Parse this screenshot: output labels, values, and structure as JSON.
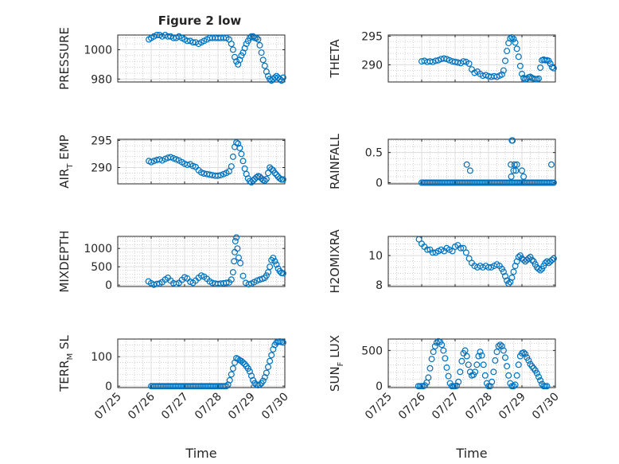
{
  "figure": {
    "title": "Figure 2 low"
  },
  "colors": {
    "marker": "#0072BD",
    "grid": "#b3b3b3",
    "axis": "#262626"
  },
  "chart_data": [
    {
      "type": "scatter",
      "title": "Figure 2 low",
      "xlabel": "",
      "ylabel": "PRESSURE",
      "xlim": [
        25.0,
        30.0
      ],
      "ylim": [
        978,
        1010
      ],
      "yticks": [
        980,
        1000
      ],
      "ytick_labels": [
        "980",
        "1000"
      ],
      "xticks": [
        25,
        26,
        27,
        28,
        29,
        30
      ],
      "xtick_labels": [],
      "grid": true,
      "x": [
        25.93,
        26.0,
        26.08,
        26.17,
        26.25,
        26.33,
        26.42,
        26.5,
        26.58,
        26.67,
        26.75,
        26.83,
        26.92,
        27.0,
        27.08,
        27.17,
        27.25,
        27.33,
        27.42,
        27.5,
        27.58,
        27.67,
        27.75,
        27.83,
        27.92,
        28.0,
        28.08,
        28.17,
        28.25,
        28.33,
        28.4,
        28.45,
        28.5,
        28.55,
        28.6,
        28.65,
        28.7,
        28.75,
        28.8,
        28.85,
        28.9,
        28.95,
        29.0,
        29.05,
        29.1,
        29.15,
        29.2,
        29.25,
        29.3,
        29.35,
        29.4,
        29.45,
        29.5,
        29.55,
        29.6,
        29.65,
        29.7,
        29.75,
        29.8,
        29.85,
        29.9,
        29.95
      ],
      "y": [
        1007,
        1008,
        1009,
        1010,
        1010,
        1009,
        1010,
        1009,
        1009,
        1008,
        1008,
        1009,
        1008,
        1007,
        1006,
        1006,
        1005,
        1005,
        1004,
        1005,
        1006,
        1007,
        1008,
        1008,
        1008,
        1008,
        1008,
        1008,
        1008,
        1007,
        1004,
        1000,
        995,
        992,
        990,
        993,
        996,
        998,
        1001,
        1004,
        1006,
        1008,
        1009,
        1009,
        1008,
        1008,
        1007,
        1003,
        998,
        993,
        989,
        985,
        982,
        980,
        979,
        980,
        981,
        982,
        981,
        980,
        979,
        981
      ]
    },
    {
      "type": "scatter",
      "xlabel": "",
      "ylabel": "THETA",
      "xlim": [
        25.0,
        30.0
      ],
      "ylim": [
        287,
        295.2
      ],
      "yticks": [
        290,
        295
      ],
      "ytick_labels": [
        "290",
        "295"
      ],
      "xticks": [
        25,
        26,
        27,
        28,
        29,
        30
      ],
      "xtick_labels": [],
      "grid": true,
      "x": [
        26.0,
        26.08,
        26.17,
        26.25,
        26.33,
        26.42,
        26.5,
        26.58,
        26.67,
        26.75,
        26.83,
        26.92,
        27.0,
        27.08,
        27.17,
        27.25,
        27.33,
        27.42,
        27.5,
        27.58,
        27.67,
        27.75,
        27.83,
        27.92,
        28.0,
        28.08,
        28.17,
        28.25,
        28.33,
        28.4,
        28.45,
        28.5,
        28.55,
        28.6,
        28.65,
        28.7,
        28.75,
        28.8,
        28.85,
        28.9,
        28.95,
        29.0,
        29.05,
        29.1,
        29.15,
        29.2,
        29.25,
        29.3,
        29.35,
        29.4,
        29.45,
        29.5,
        29.55,
        29.6,
        29.65,
        29.7,
        29.75,
        29.8,
        29.85,
        29.9,
        29.95
      ],
      "y": [
        290.6,
        290.7,
        290.5,
        290.6,
        290.5,
        290.7,
        290.8,
        291.0,
        291.1,
        291.0,
        290.8,
        290.6,
        290.5,
        290.4,
        290.3,
        290.6,
        290.5,
        290.2,
        289.2,
        288.6,
        288.8,
        288.4,
        288.1,
        288.2,
        288.0,
        287.9,
        288.0,
        287.9,
        288.1,
        288.3,
        289.0,
        290.7,
        292.4,
        293.8,
        294.6,
        294.8,
        294.5,
        293.9,
        292.8,
        291.4,
        289.8,
        288.4,
        287.7,
        287.5,
        287.6,
        287.8,
        287.9,
        287.7,
        287.6,
        287.5,
        287.5,
        287.6,
        289.5,
        290.8,
        290.9,
        290.8,
        290.8,
        290.7,
        290.2,
        289.6,
        289.4
      ]
    },
    {
      "type": "scatter",
      "xlabel": "",
      "ylabel": "AIR_T EMP",
      "xlim": [
        25.0,
        30.0
      ],
      "ylim": [
        287,
        295.2
      ],
      "yticks": [
        290,
        295
      ],
      "ytick_labels": [
        "290",
        "295"
      ],
      "xticks": [
        25,
        26,
        27,
        28,
        29,
        30
      ],
      "xtick_labels": [],
      "grid": true,
      "x": [
        25.93,
        26.0,
        26.08,
        26.17,
        26.25,
        26.33,
        26.42,
        26.5,
        26.58,
        26.67,
        26.75,
        26.83,
        26.92,
        27.0,
        27.08,
        27.17,
        27.25,
        27.33,
        27.42,
        27.5,
        27.58,
        27.67,
        27.75,
        27.83,
        27.92,
        28.0,
        28.08,
        28.17,
        28.25,
        28.33,
        28.4,
        28.45,
        28.5,
        28.55,
        28.6,
        28.65,
        28.7,
        28.75,
        28.8,
        28.85,
        28.9,
        28.95,
        29.0,
        29.05,
        29.1,
        29.15,
        29.2,
        29.25,
        29.3,
        29.35,
        29.4,
        29.45,
        29.5,
        29.55,
        29.6,
        29.65,
        29.7,
        29.75,
        29.8,
        29.85,
        29.9,
        29.95
      ],
      "y": [
        291.2,
        291.0,
        291.2,
        291.4,
        291.5,
        291.3,
        291.6,
        291.8,
        291.9,
        291.7,
        291.5,
        291.3,
        291.0,
        290.7,
        290.5,
        290.6,
        290.3,
        290.1,
        289.5,
        289.1,
        288.9,
        288.8,
        288.7,
        288.6,
        288.5,
        288.5,
        288.6,
        288.8,
        289.0,
        289.3,
        290.2,
        292.0,
        293.8,
        294.6,
        294.4,
        293.6,
        292.5,
        291.2,
        289.8,
        288.8,
        288.0,
        287.5,
        287.3,
        287.6,
        287.9,
        288.2,
        288.4,
        288.3,
        288.0,
        287.7,
        287.6,
        287.9,
        289.0,
        290.0,
        289.7,
        289.5,
        289.0,
        288.7,
        288.3,
        288.0,
        287.8,
        287.8
      ]
    },
    {
      "type": "scatter",
      "xlabel": "",
      "ylabel": "RAINFALL",
      "xlim": [
        25.0,
        30.0
      ],
      "ylim": [
        -0.02,
        0.72
      ],
      "yticks": [
        0,
        0.5
      ],
      "ytick_labels": [
        "0",
        "0.5"
      ],
      "xticks": [
        25,
        26,
        27,
        28,
        29,
        30
      ],
      "xtick_labels": [],
      "grid": true,
      "x": [
        26.0,
        26.05,
        26.1,
        26.15,
        26.2,
        26.25,
        26.3,
        26.35,
        26.4,
        26.45,
        26.5,
        26.55,
        26.6,
        26.65,
        26.7,
        26.75,
        26.8,
        26.85,
        26.9,
        26.95,
        27.0,
        27.05,
        27.1,
        27.15,
        27.2,
        27.25,
        27.3,
        27.35,
        27.4,
        27.45,
        27.5,
        27.55,
        27.6,
        27.65,
        27.7,
        27.75,
        27.8,
        27.85,
        27.9,
        27.95,
        28.0,
        28.05,
        28.1,
        28.15,
        28.2,
        28.25,
        28.3,
        28.35,
        28.4,
        28.45,
        28.5,
        28.55,
        28.6,
        28.65,
        28.7,
        28.75,
        28.8,
        28.85,
        28.9,
        28.95,
        29.0,
        29.05,
        29.1,
        29.15,
        29.2,
        29.25,
        29.3,
        29.35,
        29.4,
        29.45,
        29.5,
        29.55,
        29.6,
        29.65,
        29.7,
        29.75,
        29.8,
        29.85,
        29.9,
        29.95,
        27.35,
        27.45,
        28.67,
        28.7,
        28.72,
        28.75,
        28.78,
        28.82,
        28.68,
        28.85,
        29.0,
        29.05,
        29.88
      ],
      "y": [
        0,
        0,
        0,
        0,
        0,
        0,
        0,
        0,
        0,
        0,
        0,
        0,
        0,
        0,
        0,
        0,
        0,
        0,
        0,
        0,
        0,
        0,
        0,
        0,
        0,
        0,
        0,
        0,
        0,
        0,
        0,
        0,
        0,
        0,
        0,
        0,
        0,
        0,
        0,
        0,
        0,
        0,
        0,
        0,
        0,
        0,
        0,
        0,
        0,
        0,
        0,
        0,
        0,
        0,
        0,
        0,
        0,
        0,
        0,
        0,
        0,
        0,
        0,
        0,
        0,
        0,
        0,
        0,
        0,
        0,
        0,
        0,
        0,
        0,
        0,
        0,
        0,
        0,
        0,
        0,
        0.3,
        0.2,
        0.3,
        0.7,
        0.7,
        0.2,
        0.3,
        0.2,
        0.1,
        0.3,
        0.2,
        0.1,
        0.3
      ]
    },
    {
      "type": "scatter",
      "xlabel": "",
      "ylabel": "MIXDEPTH",
      "xlim": [
        25.0,
        30.0
      ],
      "ylim": [
        -40,
        1330
      ],
      "yticks": [
        0,
        500,
        1000
      ],
      "ytick_labels": [
        "0",
        "500",
        "1000"
      ],
      "xticks": [
        25,
        26,
        27,
        28,
        29,
        30
      ],
      "xtick_labels": [],
      "grid": true,
      "x": [
        25.92,
        26.0,
        26.08,
        26.17,
        26.25,
        26.33,
        26.42,
        26.5,
        26.58,
        26.67,
        26.75,
        26.83,
        26.92,
        27.0,
        27.08,
        27.17,
        27.25,
        27.33,
        27.42,
        27.5,
        27.58,
        27.67,
        27.75,
        27.83,
        27.92,
        28.0,
        28.08,
        28.17,
        28.25,
        28.33,
        28.4,
        28.45,
        28.48,
        28.5,
        28.52,
        28.55,
        28.58,
        28.62,
        28.67,
        28.75,
        28.83,
        28.92,
        29.0,
        29.08,
        29.17,
        29.25,
        29.33,
        29.4,
        29.45,
        29.5,
        29.55,
        29.6,
        29.65,
        29.7,
        29.75,
        29.8,
        29.85,
        29.9,
        29.95
      ],
      "y": [
        100,
        50,
        10,
        30,
        40,
        80,
        150,
        200,
        120,
        50,
        30,
        60,
        140,
        210,
        180,
        90,
        60,
        120,
        200,
        260,
        230,
        170,
        100,
        60,
        40,
        30,
        40,
        50,
        60,
        70,
        150,
        350,
        650,
        900,
        1200,
        1300,
        1000,
        750,
        600,
        250,
        60,
        20,
        40,
        80,
        120,
        150,
        170,
        200,
        260,
        350,
        500,
        680,
        740,
        650,
        560,
        450,
        380,
        330,
        320
      ]
    },
    {
      "type": "scatter",
      "xlabel": "",
      "ylabel": "H2OMIXRA",
      "xlim": [
        25.0,
        30.0
      ],
      "ylim": [
        7.9,
        11.3
      ],
      "yticks": [
        8,
        10
      ],
      "ytick_labels": [
        "8",
        "10"
      ],
      "xticks": [
        25,
        26,
        27,
        28,
        29,
        30
      ],
      "xtick_labels": [],
      "grid": true,
      "x": [
        25.92,
        26.0,
        26.08,
        26.17,
        26.25,
        26.33,
        26.42,
        26.5,
        26.58,
        26.67,
        26.75,
        26.83,
        26.92,
        27.0,
        27.08,
        27.17,
        27.25,
        27.33,
        27.42,
        27.5,
        27.58,
        27.67,
        27.75,
        27.83,
        27.92,
        28.0,
        28.08,
        28.17,
        28.25,
        28.33,
        28.4,
        28.45,
        28.5,
        28.55,
        28.6,
        28.65,
        28.7,
        28.75,
        28.8,
        28.85,
        28.9,
        28.95,
        29.0,
        29.05,
        29.1,
        29.15,
        29.2,
        29.25,
        29.3,
        29.35,
        29.4,
        29.45,
        29.5,
        29.55,
        29.6,
        29.65,
        29.7,
        29.75,
        29.8,
        29.85,
        29.9,
        29.95
      ],
      "y": [
        11.1,
        10.8,
        10.6,
        10.4,
        10.4,
        10.2,
        10.2,
        10.3,
        10.4,
        10.3,
        10.5,
        10.4,
        10.3,
        10.6,
        10.7,
        10.5,
        10.5,
        10.2,
        9.8,
        9.5,
        9.3,
        9.2,
        9.3,
        9.2,
        9.3,
        9.2,
        9.2,
        9.3,
        9.4,
        9.3,
        9.1,
        8.9,
        8.6,
        8.3,
        8.1,
        8.2,
        8.5,
        8.9,
        9.3,
        9.6,
        9.9,
        10.0,
        9.8,
        9.7,
        9.6,
        9.7,
        9.8,
        9.9,
        9.7,
        9.6,
        9.4,
        9.2,
        9.1,
        9.0,
        9.1,
        9.3,
        9.5,
        9.6,
        9.5,
        9.6,
        9.7,
        9.8
      ]
    },
    {
      "type": "scatter",
      "xlabel": "Time",
      "ylabel": "TERR_M SL",
      "xlim": [
        25.0,
        30.0
      ],
      "ylim": [
        -5,
        160
      ],
      "yticks": [
        0,
        100
      ],
      "ytick_labels": [
        "0",
        "100"
      ],
      "xticks": [
        25,
        26,
        27,
        28,
        29,
        30
      ],
      "xtick_labels": [
        "07/25",
        "07/26",
        "07/27",
        "07/28",
        "07/29",
        "07/30"
      ],
      "grid": true,
      "x": [
        26.0,
        26.05,
        26.1,
        26.15,
        26.2,
        26.25,
        26.3,
        26.35,
        26.4,
        26.45,
        26.5,
        26.55,
        26.6,
        26.65,
        26.7,
        26.75,
        26.8,
        26.85,
        26.9,
        26.95,
        27.0,
        27.05,
        27.1,
        27.15,
        27.2,
        27.25,
        27.3,
        27.35,
        27.4,
        27.45,
        27.5,
        27.55,
        27.6,
        27.65,
        27.7,
        27.75,
        27.8,
        27.85,
        27.9,
        27.95,
        28.0,
        28.05,
        28.1,
        28.15,
        28.2,
        28.25,
        28.3,
        28.35,
        28.4,
        28.45,
        28.5,
        28.55,
        28.6,
        28.65,
        28.7,
        28.75,
        28.8,
        28.85,
        28.9,
        28.95,
        29.0,
        29.05,
        29.1,
        29.15,
        29.2,
        29.25,
        29.3,
        29.35,
        29.4,
        29.45,
        29.5,
        29.55,
        29.6,
        29.65,
        29.7,
        29.75,
        29.8,
        29.85,
        29.9,
        29.95
      ],
      "y": [
        0,
        0,
        0,
        0,
        0,
        0,
        0,
        0,
        0,
        0,
        0,
        0,
        0,
        0,
        0,
        0,
        0,
        0,
        0,
        0,
        0,
        0,
        0,
        0,
        0,
        0,
        0,
        0,
        0,
        0,
        0,
        0,
        0,
        0,
        0,
        0,
        0,
        0,
        0,
        0,
        0,
        0,
        0,
        0,
        0,
        0,
        5,
        20,
        40,
        60,
        80,
        95,
        92,
        88,
        85,
        80,
        75,
        68,
        60,
        50,
        35,
        20,
        10,
        5,
        3,
        5,
        10,
        18,
        30,
        45,
        65,
        85,
        105,
        125,
        140,
        148,
        150,
        152,
        150,
        148
      ]
    },
    {
      "type": "scatter",
      "xlabel": "Time",
      "ylabel": "SUN_F LUX",
      "xlim": [
        25.0,
        30.0
      ],
      "ylim": [
        -20,
        660
      ],
      "yticks": [
        0,
        500
      ],
      "ytick_labels": [
        "0",
        "500"
      ],
      "xticks": [
        25,
        26,
        27,
        28,
        29,
        30
      ],
      "xtick_labels": [
        "07/25",
        "07/26",
        "07/27",
        "07/28",
        "07/29",
        "07/30"
      ],
      "grid": true,
      "x": [
        25.9,
        25.95,
        26.0,
        26.05,
        26.1,
        26.15,
        26.2,
        26.25,
        26.3,
        26.35,
        26.4,
        26.45,
        26.5,
        26.55,
        26.6,
        26.65,
        26.7,
        26.75,
        26.8,
        26.85,
        26.9,
        26.95,
        27.0,
        27.05,
        27.1,
        27.15,
        27.2,
        27.25,
        27.3,
        27.35,
        27.4,
        27.45,
        27.5,
        27.55,
        27.6,
        27.65,
        27.7,
        27.75,
        27.8,
        27.85,
        27.9,
        27.95,
        28.0,
        28.05,
        28.1,
        28.15,
        28.2,
        28.25,
        28.3,
        28.35,
        28.4,
        28.45,
        28.5,
        28.55,
        28.6,
        28.65,
        28.7,
        28.75,
        28.8,
        28.85,
        28.9,
        28.95,
        29.0,
        29.05,
        29.1,
        29.15,
        29.2,
        29.25,
        29.3,
        29.35,
        29.4,
        29.45,
        29.5,
        29.55,
        29.6,
        29.65,
        29.7,
        29.75
      ],
      "y": [
        0,
        0,
        0,
        0,
        10,
        50,
        120,
        250,
        380,
        480,
        560,
        610,
        630,
        620,
        580,
        500,
        390,
        260,
        140,
        40,
        0,
        0,
        0,
        5,
        60,
        200,
        350,
        460,
        500,
        420,
        300,
        200,
        150,
        160,
        200,
        300,
        420,
        480,
        430,
        300,
        150,
        40,
        0,
        0,
        60,
        200,
        360,
        480,
        560,
        580,
        560,
        500,
        400,
        280,
        150,
        40,
        0,
        0,
        20,
        150,
        300,
        420,
        460,
        470,
        450,
        400,
        360,
        310,
        280,
        250,
        220,
        180,
        130,
        80,
        30,
        0,
        0,
        0
      ]
    }
  ]
}
